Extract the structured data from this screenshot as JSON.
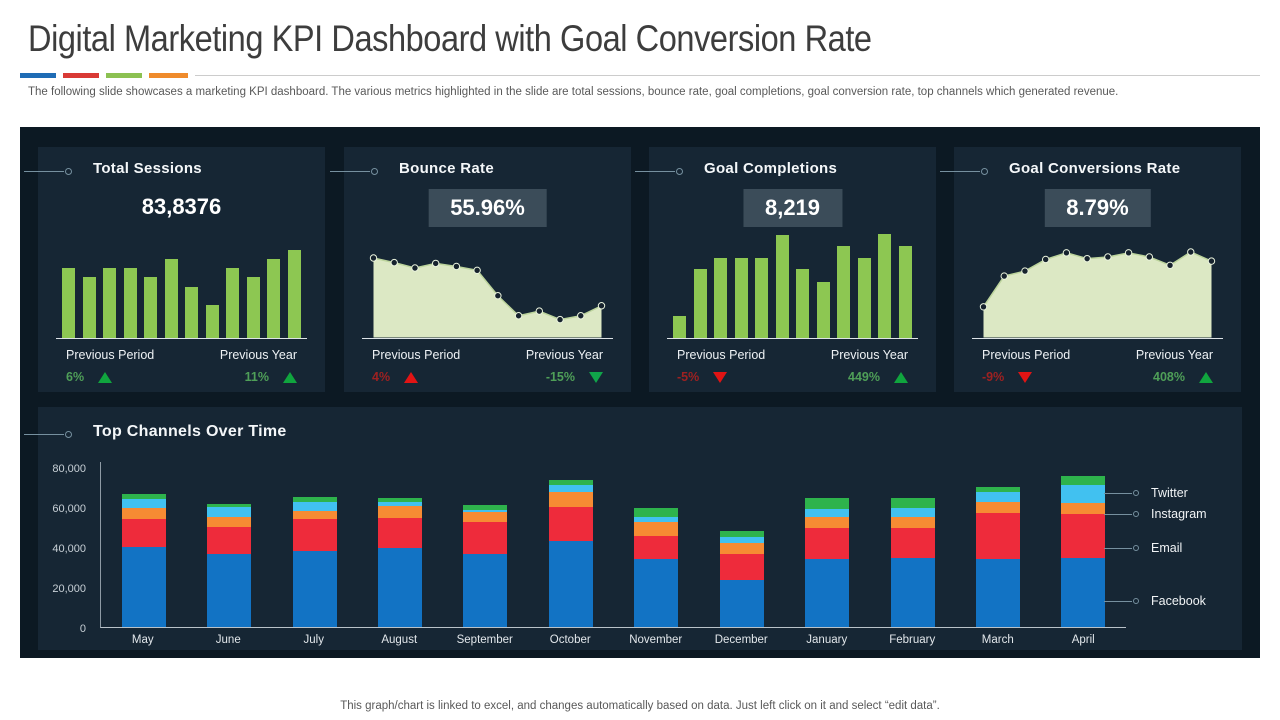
{
  "page": {
    "title": "Digital Marketing KPI Dashboard with Goal Conversion Rate",
    "subtitle": "The following slide showcases a marketing KPI dashboard. The various metrics highlighted in the slide are total sessions, bounce rate, goal completions, goal conversion rate, top channels which generated revenue.",
    "footer": "This graph/chart is linked to excel,  and changes automatically based on data. Just left click on it and select “edit data”.",
    "accent_colors": [
      "#1f6cb5",
      "#d93a35",
      "#8cc152",
      "#ef8b2c"
    ]
  },
  "kpi_cards": [
    {
      "title": "Total Sessions",
      "value": "83,8376",
      "value_boxed": false,
      "left_label": "Previous Period",
      "right_label": "Previous Year",
      "left_change": {
        "text": "6%",
        "direction": "up",
        "color": "green"
      },
      "right_change": {
        "text": "11%",
        "direction": "up",
        "color": "green"
      }
    },
    {
      "title": "Bounce Rate",
      "value": "55.96%",
      "value_boxed": true,
      "left_label": "Previous Period",
      "right_label": "Previous Year",
      "left_change": {
        "text": "4%",
        "direction": "up",
        "color": "red"
      },
      "right_change": {
        "text": "-15%",
        "direction": "down",
        "color": "green"
      }
    },
    {
      "title": "Goal Completions",
      "value": "8,219",
      "value_boxed": true,
      "left_label": "Previous Period",
      "right_label": "Previous Year",
      "left_change": {
        "text": "-5%",
        "direction": "down",
        "color": "red"
      },
      "right_change": {
        "text": "449%",
        "direction": "up",
        "color": "green"
      }
    },
    {
      "title": "Goal Conversions Rate",
      "value": "8.79%",
      "value_boxed": true,
      "left_label": "Previous Period",
      "right_label": "Previous Year",
      "left_change": {
        "text": "-9%",
        "direction": "down",
        "color": "red"
      },
      "right_change": {
        "text": "408%",
        "direction": "up",
        "color": "green"
      }
    }
  ],
  "chart_data": [
    {
      "type": "bar",
      "title": "Total Sessions",
      "unit": "relative height %",
      "color": "#8dc752",
      "values": [
        79,
        69,
        80,
        80,
        69,
        90,
        58,
        38,
        80,
        69,
        90,
        100
      ]
    },
    {
      "type": "area",
      "title": "Bounce Rate",
      "unit": "relative height %",
      "fill": "#dce8c4",
      "line": "#bcd49c",
      "dot": "#16222d",
      "values": [
        100,
        94,
        87,
        93,
        89,
        84,
        51,
        25,
        31,
        20,
        25,
        38
      ]
    },
    {
      "type": "bar",
      "title": "Goal Completions",
      "unit": "relative height %",
      "color": "#8dc752",
      "values": [
        21,
        66,
        77,
        77,
        77,
        99,
        66,
        54,
        88,
        77,
        100,
        88
      ]
    },
    {
      "type": "area",
      "title": "Goal Conversions Rate",
      "unit": "relative height %",
      "fill": "#dce8c4",
      "line": "#bcd49c",
      "dot": "#16222d",
      "values": [
        34,
        71,
        77,
        91,
        99,
        92,
        94,
        99,
        94,
        84,
        100,
        89
      ]
    },
    {
      "type": "bar",
      "stacked": true,
      "title": "Top Channels Over Time",
      "categories": [
        "May",
        "June",
        "July",
        "August",
        "September",
        "October",
        "November",
        "December",
        "January",
        "February",
        "March",
        "April"
      ],
      "series": [
        {
          "name": "Facebook",
          "color": "#1273c4",
          "values": [
            40000,
            36500,
            38000,
            39500,
            36500,
            43000,
            34000,
            23500,
            34000,
            34500,
            34000,
            34500
          ]
        },
        {
          "name": "Email",
          "color": "#ee2b3b",
          "values": [
            14000,
            13500,
            16000,
            15000,
            15800,
            17000,
            11500,
            13000,
            15500,
            15000,
            23000,
            22000
          ]
        },
        {
          "name": "Instagram",
          "color": "#f68b33",
          "values": [
            5500,
            5000,
            4000,
            6000,
            5000,
            7500,
            7000,
            5500,
            5500,
            5500,
            5500,
            5500
          ]
        },
        {
          "name": "Twitter",
          "color": "#41c1f0",
          "values": [
            4500,
            5000,
            4600,
            2000,
            1200,
            3500,
            2500,
            3000,
            4000,
            4500,
            5000,
            9000
          ]
        },
        {
          "name": "(unlabeled)",
          "color": "#2eb34c",
          "values": [
            2500,
            1500,
            2500,
            2000,
            2500,
            2500,
            4500,
            3000,
            5500,
            5000,
            2500,
            4500
          ]
        }
      ],
      "ylim": [
        0,
        80000
      ],
      "yticks": [
        {
          "v": 0,
          "label": "0"
        },
        {
          "v": 20000,
          "label": "20,000"
        },
        {
          "v": 40000,
          "label": "40,000"
        },
        {
          "v": 60000,
          "label": "60,000"
        },
        {
          "v": 80000,
          "label": "80,000"
        }
      ],
      "legend": [
        {
          "label": "Twitter",
          "color": "#41c1f0"
        },
        {
          "label": "Instagram",
          "color": "#f68b33"
        },
        {
          "label": "Email",
          "color": "#ee2b3b"
        },
        {
          "label": "Facebook",
          "color": "#1273c4"
        }
      ],
      "legend_position": "right",
      "grid": false
    }
  ]
}
